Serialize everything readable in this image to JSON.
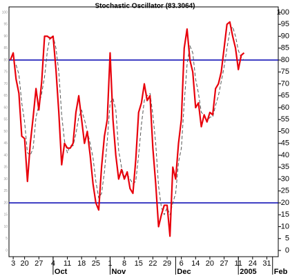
{
  "chart_data": {
    "type": "line",
    "title": "Stochastic Oscillator (83.3064)",
    "x": [
      0,
      1,
      2,
      3,
      4,
      5,
      6,
      7,
      8,
      9,
      10,
      11,
      12,
      13,
      14,
      15,
      16,
      17,
      18,
      19,
      20,
      21,
      22,
      23,
      24,
      25,
      26,
      27,
      28,
      29,
      30,
      31,
      32,
      33,
      34,
      35,
      36,
      37,
      38,
      39,
      40,
      41,
      42,
      43,
      44,
      45,
      46,
      47,
      48,
      49,
      50,
      51,
      52,
      53,
      54,
      55,
      56,
      57,
      58,
      59,
      60,
      61,
      62,
      63,
      64,
      65,
      66,
      67,
      68,
      69,
      70,
      71,
      72,
      73,
      74,
      75,
      76,
      77,
      78,
      79,
      80,
      81,
      82
    ],
    "series": [
      {
        "color": "#e8000b",
        "style": "solid",
        "width": 2.2,
        "values": [
          80,
          83,
          72,
          66,
          48,
          47,
          29,
          45,
          56,
          68,
          59,
          71,
          90,
          90,
          89,
          90,
          76,
          58,
          36,
          45,
          43,
          43,
          45,
          58,
          65,
          55,
          45,
          50,
          40,
          28,
          20,
          17,
          35,
          48,
          55,
          83,
          55,
          40,
          30,
          34,
          30,
          33,
          26,
          24,
          38,
          58,
          62,
          70,
          63,
          65,
          43,
          28,
          10,
          15,
          19,
          19,
          6,
          35,
          30,
          45,
          55,
          85,
          93,
          80,
          75,
          60,
          62,
          52,
          57,
          54,
          58,
          57,
          68,
          70,
          75,
          85,
          95,
          96,
          90,
          85,
          76,
          82,
          83
        ]
      },
      {
        "color": "#555555",
        "style": "dashed",
        "width": 1,
        "values": [
          null,
          null,
          78,
          74,
          62,
          54,
          41,
          40,
          43,
          56,
          61,
          66,
          73,
          84,
          90,
          90,
          85,
          75,
          57,
          46,
          41,
          44,
          44,
          49,
          56,
          59,
          55,
          50,
          45,
          39,
          29,
          22,
          24,
          33,
          46,
          62,
          64,
          59,
          42,
          35,
          31,
          32,
          30,
          28,
          29,
          40,
          53,
          63,
          65,
          66,
          57,
          45,
          27,
          18,
          15,
          18,
          15,
          20,
          24,
          37,
          43,
          62,
          78,
          86,
          83,
          72,
          66,
          58,
          57,
          54,
          56,
          56,
          61,
          65,
          71,
          77,
          85,
          92,
          94,
          90,
          84,
          81,
          80
        ]
      }
    ],
    "hlines": [
      80,
      20
    ],
    "hline_color": "#0000b0",
    "xlim": [
      0,
      94
    ],
    "xticks": [
      {
        "value": 1,
        "label": "3"
      },
      {
        "value": 5,
        "label": "20"
      },
      {
        "value": 10,
        "label": "27"
      },
      {
        "value": 15,
        "label": "4"
      },
      {
        "value": 20,
        "label": "11"
      },
      {
        "value": 25,
        "label": "18"
      },
      {
        "value": 30,
        "label": "25"
      },
      {
        "value": 35,
        "label": "1"
      },
      {
        "value": 40,
        "label": "8"
      },
      {
        "value": 45,
        "label": "15"
      },
      {
        "value": 50,
        "label": "22"
      },
      {
        "value": 55,
        "label": "29"
      },
      {
        "value": 60,
        "label": "6"
      },
      {
        "value": 65,
        "label": "14"
      },
      {
        "value": 70,
        "label": "20"
      },
      {
        "value": 75,
        "label": "27"
      },
      {
        "value": 80,
        "label": "11"
      },
      {
        "value": 85,
        "label": "24"
      },
      {
        "value": 90,
        "label": "31"
      }
    ],
    "month_ticks": [
      {
        "value": 15,
        "label": "Oct"
      },
      {
        "value": 35,
        "label": "Nov"
      },
      {
        "value": 58,
        "label": "Dec"
      },
      {
        "value": 80,
        "label": "2005"
      },
      {
        "value": 92,
        "label": "Feb"
      }
    ],
    "ylim": [
      0,
      100
    ],
    "yticks": [
      0,
      5,
      10,
      15,
      20,
      25,
      30,
      35,
      40,
      45,
      50,
      55,
      60,
      65,
      70,
      75,
      80,
      85,
      90,
      95,
      100
    ]
  }
}
